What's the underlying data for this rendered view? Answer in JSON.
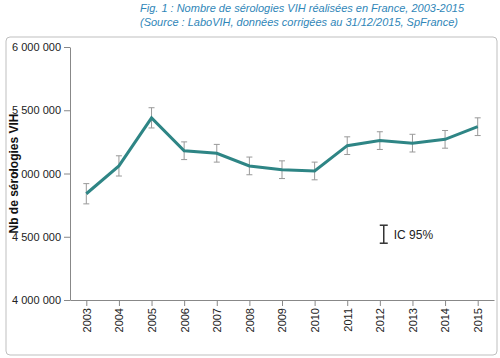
{
  "chart_data": {
    "type": "line",
    "title": "Fig. 1 : Nombre de sérologies VIH réalisées en France, 2003-2015",
    "subtitle": "(Source : LaboVIH, données corrigées au 31/12/2015, SpFrance)",
    "y_label": "Nb de sérologies VIH",
    "categories": [
      "2003",
      "2004",
      "2005",
      "2006",
      "2007",
      "2008",
      "2009",
      "2010",
      "2011",
      "2012",
      "2013",
      "2014",
      "2015"
    ],
    "values": [
      4840000,
      5060000,
      5440000,
      5180000,
      5160000,
      5060000,
      5030000,
      5020000,
      5220000,
      5260000,
      5240000,
      5270000,
      5370000
    ],
    "errors": [
      80000,
      80000,
      80000,
      70000,
      70000,
      70000,
      70000,
      70000,
      70000,
      70000,
      70000,
      70000,
      70000
    ],
    "color": "#2e8585",
    "annotation": "IC 95%",
    "ylim": [
      4000000,
      6000000
    ],
    "yticks": [
      {
        "value": 4000000,
        "label": "4 000 000"
      },
      {
        "value": 4500000,
        "label": "4 500 000"
      },
      {
        "value": 5000000,
        "label": "5 000 000"
      },
      {
        "value": 5500000,
        "label": "5 500 000"
      },
      {
        "value": 6000000,
        "label": "6 000 000"
      }
    ],
    "grid": false
  }
}
